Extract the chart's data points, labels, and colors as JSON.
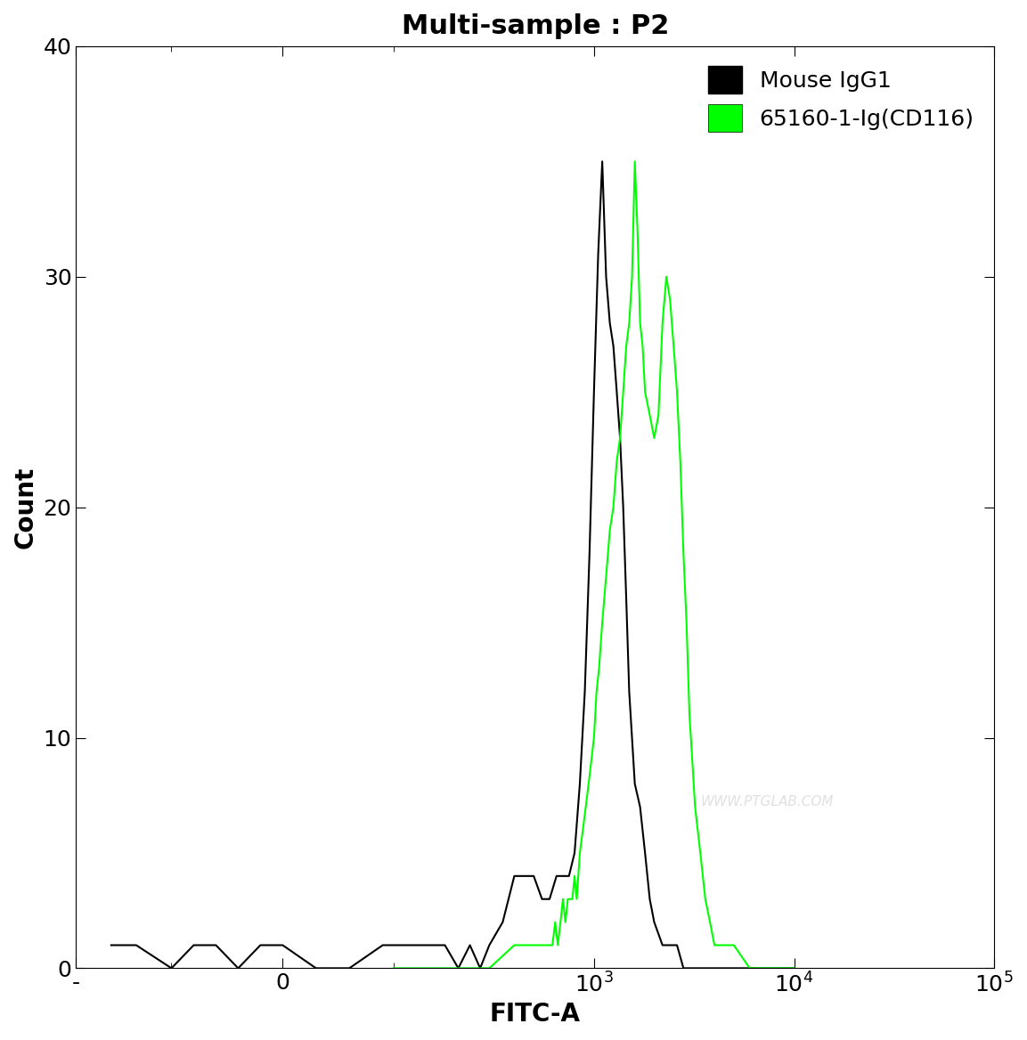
{
  "title": "Multi-sample : P2",
  "xlabel": "FITC-A",
  "ylabel": "Count",
  "xlim_log_min": 1,
  "xlim_log_max": 100000,
  "ylim": [
    0,
    40
  ],
  "yticks": [
    0,
    10,
    20,
    30,
    40
  ],
  "background_color": "#ffffff",
  "black_color": "#000000",
  "green_color": "#00ff00",
  "legend_labels": [
    "Mouse IgG1",
    "65160-1-Ig(CD116)"
  ],
  "watermark": "WWW.PTGLAB.COM",
  "black_curve_x": [
    -200,
    -150,
    -100,
    -80,
    -60,
    -40,
    -20,
    0,
    30,
    60,
    90,
    120,
    150,
    180,
    210,
    240,
    270,
    300,
    350,
    400,
    450,
    500,
    550,
    600,
    650,
    700,
    750,
    800,
    850,
    900,
    950,
    1000,
    1050,
    1100,
    1150,
    1200,
    1250,
    1300,
    1350,
    1400,
    1450,
    1500,
    1600,
    1700,
    1800,
    1900,
    2000,
    2200,
    2400,
    2600,
    2800,
    3000,
    3200,
    3500,
    4000,
    5000,
    6000,
    8000,
    10000
  ],
  "black_curve_y": [
    1,
    1,
    0,
    1,
    1,
    0,
    1,
    1,
    0,
    0,
    1,
    1,
    1,
    1,
    0,
    1,
    0,
    1,
    2,
    4,
    4,
    4,
    3,
    3,
    4,
    4,
    4,
    5,
    8,
    12,
    18,
    25,
    31,
    35,
    30,
    28,
    27,
    25,
    23,
    20,
    16,
    12,
    8,
    7,
    5,
    3,
    2,
    1,
    1,
    1,
    0,
    0,
    0,
    0,
    0,
    0,
    0,
    0,
    0
  ],
  "green_curve_x": [
    100,
    200,
    300,
    400,
    500,
    550,
    600,
    620,
    640,
    660,
    680,
    700,
    720,
    740,
    760,
    780,
    800,
    820,
    850,
    880,
    910,
    940,
    970,
    1000,
    1030,
    1060,
    1100,
    1150,
    1200,
    1250,
    1300,
    1350,
    1400,
    1450,
    1500,
    1550,
    1600,
    1650,
    1700,
    1750,
    1800,
    1900,
    2000,
    2100,
    2200,
    2300,
    2400,
    2500,
    2600,
    2700,
    2800,
    2900,
    3000,
    3100,
    3200,
    3400,
    3600,
    3800,
    4000,
    4500,
    5000,
    6000,
    7000,
    8000,
    10000
  ],
  "green_curve_y": [
    0,
    0,
    0,
    1,
    1,
    1,
    1,
    1,
    2,
    1,
    2,
    3,
    2,
    3,
    3,
    3,
    4,
    3,
    5,
    6,
    7,
    8,
    9,
    10,
    12,
    13,
    15,
    17,
    19,
    20,
    22,
    23,
    25,
    27,
    28,
    30,
    35,
    32,
    28,
    27,
    25,
    24,
    23,
    24,
    28,
    30,
    29,
    27,
    25,
    22,
    18,
    15,
    11,
    9,
    7,
    5,
    3,
    2,
    1,
    1,
    1,
    0,
    0,
    0,
    0
  ]
}
